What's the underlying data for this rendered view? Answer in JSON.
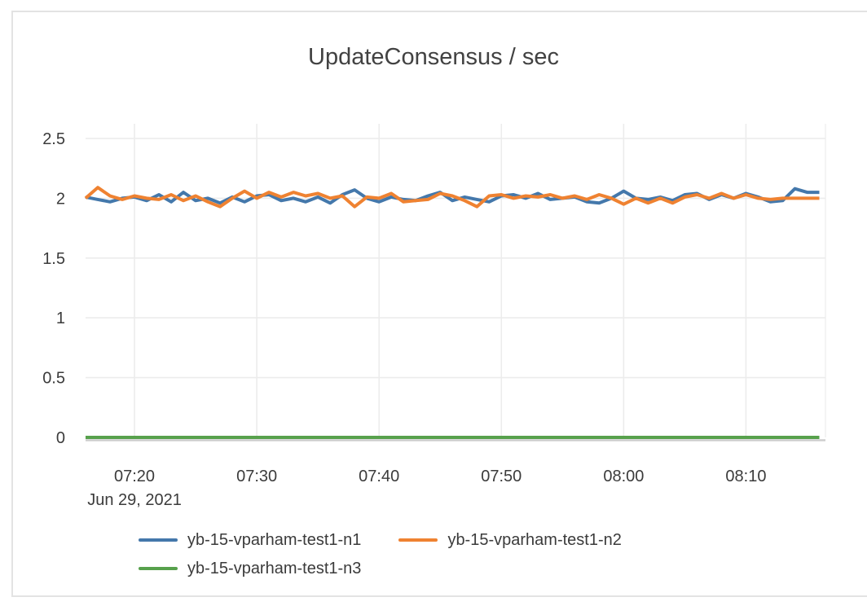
{
  "chart_data": {
    "type": "line",
    "title": "UpdateConsensus / sec",
    "xlabel": "",
    "ylabel": "",
    "grid": true,
    "legend_position": "bottom",
    "x_axis": {
      "date_label": "Jun 29, 2021",
      "tick_labels": [
        "07:20",
        "07:30",
        "07:40",
        "07:50",
        "08:00",
        "08:10"
      ],
      "tick_minutes": [
        440,
        450,
        460,
        470,
        480,
        490
      ],
      "range_minutes": [
        436,
        496.5
      ]
    },
    "y_axis": {
      "tick_values": [
        0,
        0.5,
        1,
        1.5,
        2,
        2.5
      ],
      "tick_labels": [
        "0",
        "0.5",
        "1",
        "1.5",
        "2",
        "2.5"
      ],
      "range": [
        0,
        2.62
      ]
    },
    "x_times": [
      "07:16",
      "07:17",
      "07:18",
      "07:19",
      "07:20",
      "07:21",
      "07:22",
      "07:23",
      "07:24",
      "07:25",
      "07:26",
      "07:27",
      "07:28",
      "07:29",
      "07:30",
      "07:31",
      "07:32",
      "07:33",
      "07:34",
      "07:35",
      "07:36",
      "07:37",
      "07:38",
      "07:39",
      "07:40",
      "07:41",
      "07:42",
      "07:43",
      "07:44",
      "07:45",
      "07:46",
      "07:47",
      "07:48",
      "07:49",
      "07:50",
      "07:51",
      "07:52",
      "07:53",
      "07:54",
      "07:55",
      "07:56",
      "07:57",
      "07:58",
      "07:59",
      "08:00",
      "08:01",
      "08:02",
      "08:03",
      "08:04",
      "08:05",
      "08:06",
      "08:07",
      "08:08",
      "08:09",
      "08:10",
      "08:11",
      "08:12",
      "08:13",
      "08:14",
      "08:15",
      "08:16"
    ],
    "series": [
      {
        "name": "yb-15-vparham-test1-n1",
        "color": "#4478ab",
        "values": [
          2.01,
          1.99,
          1.97,
          2.0,
          2.01,
          1.98,
          2.03,
          1.97,
          2.05,
          1.98,
          2.0,
          1.96,
          2.01,
          1.97,
          2.02,
          2.03,
          1.98,
          2.0,
          1.97,
          2.01,
          1.96,
          2.03,
          2.07,
          2.0,
          1.97,
          2.01,
          1.99,
          1.98,
          2.02,
          2.05,
          1.98,
          2.01,
          1.99,
          1.97,
          2.02,
          2.03,
          2.0,
          2.04,
          1.99,
          2.0,
          2.01,
          1.97,
          1.96,
          2.0,
          2.06,
          2.0,
          1.99,
          2.01,
          1.98,
          2.03,
          2.04,
          1.99,
          2.03,
          2.0,
          2.04,
          2.01,
          1.97,
          1.98,
          2.08,
          2.05,
          2.05
        ]
      },
      {
        "name": "yb-15-vparham-test1-n2",
        "color": "#ef8231",
        "values": [
          2.0,
          2.09,
          2.02,
          1.99,
          2.02,
          2.0,
          1.99,
          2.03,
          1.98,
          2.02,
          1.97,
          1.93,
          2.0,
          2.06,
          2.0,
          2.05,
          2.01,
          2.05,
          2.02,
          2.04,
          2.0,
          2.02,
          1.93,
          2.01,
          2.0,
          2.04,
          1.97,
          1.98,
          1.99,
          2.04,
          2.02,
          1.98,
          1.93,
          2.02,
          2.03,
          2.0,
          2.02,
          2.01,
          2.03,
          2.0,
          2.02,
          1.99,
          2.03,
          2.0,
          1.95,
          2.0,
          1.96,
          2.0,
          1.96,
          2.01,
          2.03,
          2.0,
          2.04,
          2.0,
          2.03,
          2.0,
          1.99,
          2.0,
          2.0,
          2.0,
          2.0
        ]
      },
      {
        "name": "yb-15-vparham-test1-n3",
        "color": "#57a14c",
        "values": [
          0,
          0,
          0,
          0,
          0,
          0,
          0,
          0,
          0,
          0,
          0,
          0,
          0,
          0,
          0,
          0,
          0,
          0,
          0,
          0,
          0,
          0,
          0,
          0,
          0,
          0,
          0,
          0,
          0,
          0,
          0,
          0,
          0,
          0,
          0,
          0,
          0,
          0,
          0,
          0,
          0,
          0,
          0,
          0,
          0,
          0,
          0,
          0,
          0,
          0,
          0,
          0,
          0,
          0,
          0,
          0,
          0,
          0,
          0,
          0,
          0
        ]
      }
    ]
  },
  "style_colors": {
    "grid": "#ececec",
    "axis_line": "#cdcdcd",
    "tick_text": "#3b3b3b",
    "card_border": "#e3e3e3"
  }
}
